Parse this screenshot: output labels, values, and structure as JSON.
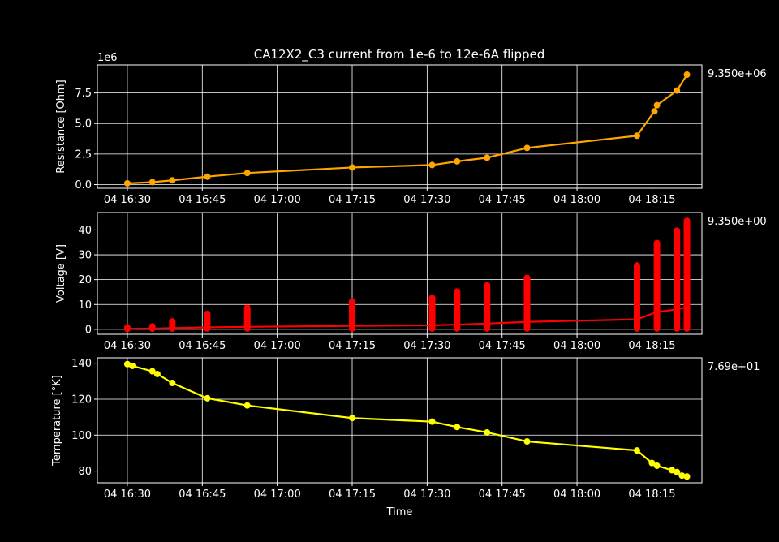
{
  "title": "CA12X2_C3 current from 1e-6 to 12e-6A flipped",
  "chart_data": [
    {
      "type": "line",
      "ylabel": "Resistance [Ohm]",
      "offset_text": "1e6",
      "side_value": "9.350e+06",
      "color": "#ffa500",
      "ylim": [
        -300000,
        9800000
      ],
      "yticks": [
        0,
        2500000,
        5000000,
        7500000
      ],
      "ytick_labels": [
        "0.0",
        "2.5",
        "5.0",
        "7.5"
      ],
      "series": [
        {
          "x": [
            "16:30",
            "16:35",
            "16:39",
            "16:46",
            "16:54",
            "17:15",
            "17:31",
            "17:36",
            "17:42",
            "17:50",
            "18:12",
            "18:15:30",
            "18:16",
            "18:20",
            "18:22"
          ],
          "values": [
            100000,
            200000,
            350000,
            650000,
            950000,
            1400000,
            1600000,
            1900000,
            2200000,
            3000000,
            4000000,
            6000000,
            6500000,
            7700000,
            9000000
          ]
        }
      ]
    },
    {
      "type": "line",
      "ylabel": "Voltage [V]",
      "side_value": "9.350e+00",
      "color": "#ff0000",
      "ylim": [
        -2,
        47
      ],
      "yticks": [
        0,
        10,
        20,
        30,
        40
      ],
      "ytick_labels": [
        "0",
        "10",
        "20",
        "30",
        "40"
      ],
      "series": [
        {
          "x": [
            "16:30",
            "16:35",
            "16:39",
            "16:46",
            "16:54",
            "17:15",
            "17:31",
            "17:36",
            "17:42",
            "17:50",
            "18:12",
            "18:16",
            "18:20",
            "18:22"
          ],
          "values": [
            0.2,
            0.3,
            0.5,
            0.8,
            1.0,
            1.4,
            1.6,
            1.9,
            2.3,
            3.0,
            4.0,
            7.0,
            8.0,
            9.0
          ]
        }
      ],
      "spikes": [
        {
          "x": "16:30",
          "max": 2
        },
        {
          "x": "16:35",
          "max": 2.5
        },
        {
          "x": "16:39",
          "max": 4.5
        },
        {
          "x": "16:46",
          "max": 7.5
        },
        {
          "x": "16:54",
          "max": 10
        },
        {
          "x": "17:15",
          "max": 12.5
        },
        {
          "x": "17:31",
          "max": 14
        },
        {
          "x": "17:36",
          "max": 16.5
        },
        {
          "x": "17:42",
          "max": 19
        },
        {
          "x": "17:50",
          "max": 22
        },
        {
          "x": "18:12",
          "max": 27
        },
        {
          "x": "18:16",
          "max": 36
        },
        {
          "x": "18:20",
          "max": 41
        },
        {
          "x": "18:22",
          "max": 45
        }
      ]
    },
    {
      "type": "line",
      "ylabel": "Temperature [°K]",
      "xlabel": "Time",
      "side_value": "7.69e+01",
      "color": "#ffff00",
      "ylim": [
        73.5,
        143
      ],
      "yticks": [
        80,
        100,
        120,
        140
      ],
      "ytick_labels": [
        "80",
        "100",
        "120",
        "140"
      ],
      "series": [
        {
          "x": [
            "16:30",
            "16:31",
            "16:35",
            "16:36",
            "16:39",
            "16:46",
            "16:54",
            "17:15",
            "17:31",
            "17:36",
            "17:42",
            "17:50",
            "18:12",
            "18:15",
            "18:16",
            "18:19",
            "18:20",
            "18:21",
            "18:22"
          ],
          "values": [
            139.5,
            138.5,
            135.5,
            134,
            129,
            120.5,
            116.5,
            109.5,
            107.5,
            104.5,
            101.5,
            96.5,
            91.5,
            84.5,
            83,
            80.5,
            79.5,
            77.5,
            77
          ]
        }
      ]
    }
  ],
  "x_axis": {
    "ticks": [
      "16:30",
      "16:45",
      "17:00",
      "17:15",
      "17:30",
      "17:45",
      "18:00",
      "18:15"
    ],
    "tick_labels": [
      "04 16:30",
      "04 16:45",
      "04 17:00",
      "04 17:15",
      "04 17:30",
      "04 17:45",
      "04 18:00",
      "04 18:15"
    ],
    "xlim": [
      "16:24",
      "18:25"
    ]
  }
}
